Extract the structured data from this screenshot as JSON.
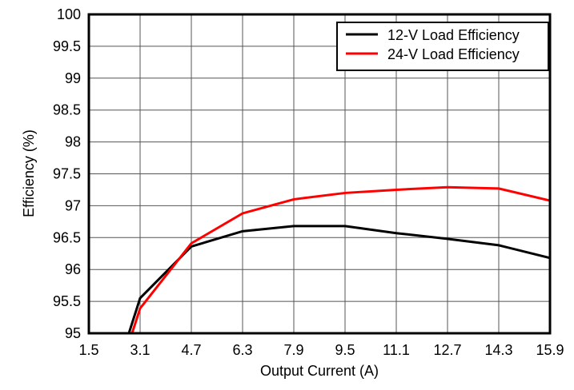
{
  "chart_data": {
    "type": "line",
    "title": "",
    "xlabel": "Output Current (A)",
    "ylabel": "Efficiency (%)",
    "xlim": [
      1.5,
      15.9
    ],
    "ylim": [
      95,
      100
    ],
    "xticks": [
      "1.5",
      "3.1",
      "4.7",
      "6.3",
      "7.9",
      "9.5",
      "11.1",
      "12.7",
      "14.3",
      "15.9"
    ],
    "yticks": [
      "95",
      "95.5",
      "96",
      "96.5",
      "97",
      "97.5",
      "98",
      "98.5",
      "99",
      "99.5",
      "100"
    ],
    "grid": true,
    "legend_position": "top-right",
    "series": [
      {
        "name": "12-V Load Efficiency",
        "color": "#000000",
        "x": [
          2.75,
          3.1,
          4.7,
          6.3,
          7.9,
          9.5,
          11.1,
          12.7,
          14.3,
          15.9
        ],
        "y": [
          95.0,
          95.55,
          96.36,
          96.6,
          96.68,
          96.68,
          96.57,
          96.48,
          96.38,
          96.18
        ]
      },
      {
        "name": "24-V Load Efficiency",
        "color": "#ff0000",
        "x": [
          2.85,
          3.1,
          4.7,
          6.3,
          7.9,
          9.5,
          11.1,
          12.7,
          14.3,
          15.9
        ],
        "y": [
          95.0,
          95.39,
          96.41,
          96.88,
          97.1,
          97.2,
          97.25,
          97.29,
          97.27,
          97.08
        ]
      }
    ]
  }
}
